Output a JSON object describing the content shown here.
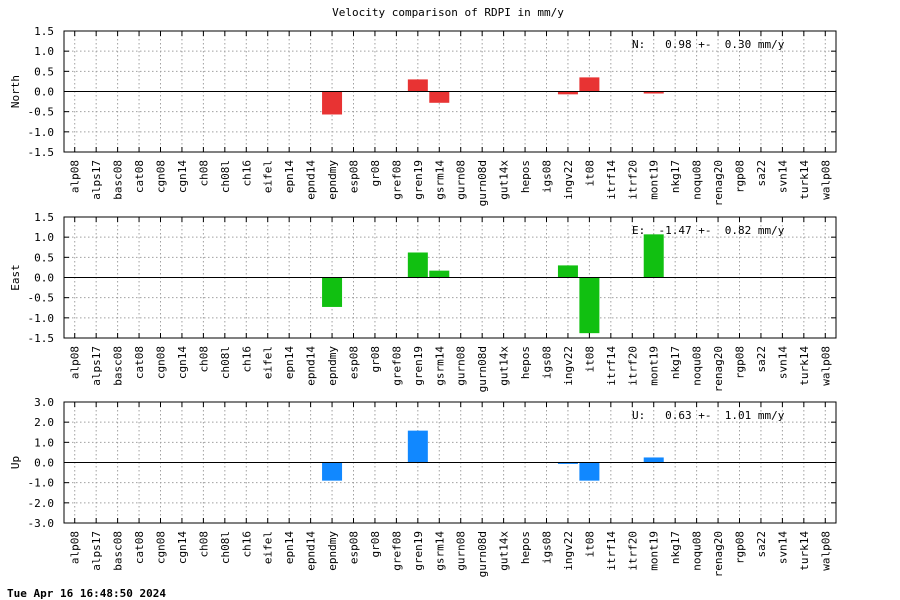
{
  "chart_data": {
    "type": "bar",
    "title": "Velocity comparison of RDPI in mm/y",
    "categories": [
      "alp08",
      "alps17",
      "basc08",
      "cat08",
      "cgn08",
      "cgn14",
      "ch08",
      "ch08l",
      "ch16",
      "eifel",
      "epn14",
      "epnd14",
      "epndmy",
      "esp08",
      "gr08",
      "gref08",
      "gren19",
      "gsrm14",
      "gurn08",
      "gurn08d",
      "gut14x",
      "hepos",
      "igs08",
      "ingv22",
      "it08",
      "itrf14",
      "itrf20",
      "mont19",
      "nkg17",
      "noqu08",
      "renag20",
      "rgp08",
      "sa22",
      "svn14",
      "turk14",
      "walp08"
    ],
    "grid": true,
    "panels": [
      {
        "ylabel": "North",
        "color": "#e83333",
        "ylim": [
          -1.5,
          1.5
        ],
        "yticks": [
          1.5,
          1.0,
          0.5,
          0.0,
          -0.5,
          -1.0,
          -1.5
        ],
        "ytick_labels": [
          "1.5",
          "1.0",
          "0.5",
          "0.0",
          "-0.5",
          "-1.0",
          "-1.5"
        ],
        "stat": "N:   0.98 +-  0.30 mm/y",
        "values": [
          0,
          0,
          0,
          0,
          0,
          0,
          0,
          0,
          0,
          0,
          0,
          0,
          -0.57,
          0,
          0,
          0,
          0.3,
          -0.28,
          0,
          0,
          0,
          0,
          0,
          -0.07,
          0.35,
          0,
          0,
          -0.05,
          0,
          0,
          0,
          0,
          0,
          0,
          0,
          0
        ]
      },
      {
        "ylabel": "East",
        "color": "#11c011",
        "ylim": [
          -1.5,
          1.5
        ],
        "yticks": [
          1.5,
          1.0,
          0.5,
          0.0,
          -0.5,
          -1.0,
          -1.5
        ],
        "ytick_labels": [
          "1.5",
          "1.0",
          "0.5",
          "0.0",
          "-0.5",
          "-1.0",
          "-1.5"
        ],
        "stat": "E:  -1.47 +-  0.82 mm/y",
        "values": [
          0,
          0,
          0,
          0,
          0,
          0,
          0,
          0,
          0,
          0,
          0,
          0,
          -0.73,
          0,
          0,
          0,
          0.62,
          0.17,
          0,
          0,
          0,
          0,
          0,
          0.3,
          -1.38,
          0,
          0,
          1.07,
          0,
          0,
          0,
          0,
          0,
          0,
          0,
          0
        ]
      },
      {
        "ylabel": "Up",
        "color": "#1188ff",
        "ylim": [
          -3.0,
          3.0
        ],
        "yticks": [
          3.0,
          2.0,
          1.0,
          0.0,
          -1.0,
          -2.0,
          -3.0
        ],
        "ytick_labels": [
          "3.0",
          "2.0",
          "1.0",
          "0.0",
          "-1.0",
          "-2.0",
          "-3.0"
        ],
        "stat": "U:   0.63 +-  1.01 mm/y",
        "values": [
          0,
          0,
          0,
          0,
          0,
          0,
          0,
          0,
          0,
          0,
          0,
          0,
          -0.9,
          0,
          0,
          0,
          1.58,
          0,
          0,
          0,
          0,
          0,
          0,
          -0.07,
          -0.9,
          0,
          0,
          0.25,
          0,
          0,
          0,
          0,
          0,
          0,
          0,
          0
        ]
      }
    ]
  },
  "footer": "Tue Apr 16 16:48:50 2024"
}
